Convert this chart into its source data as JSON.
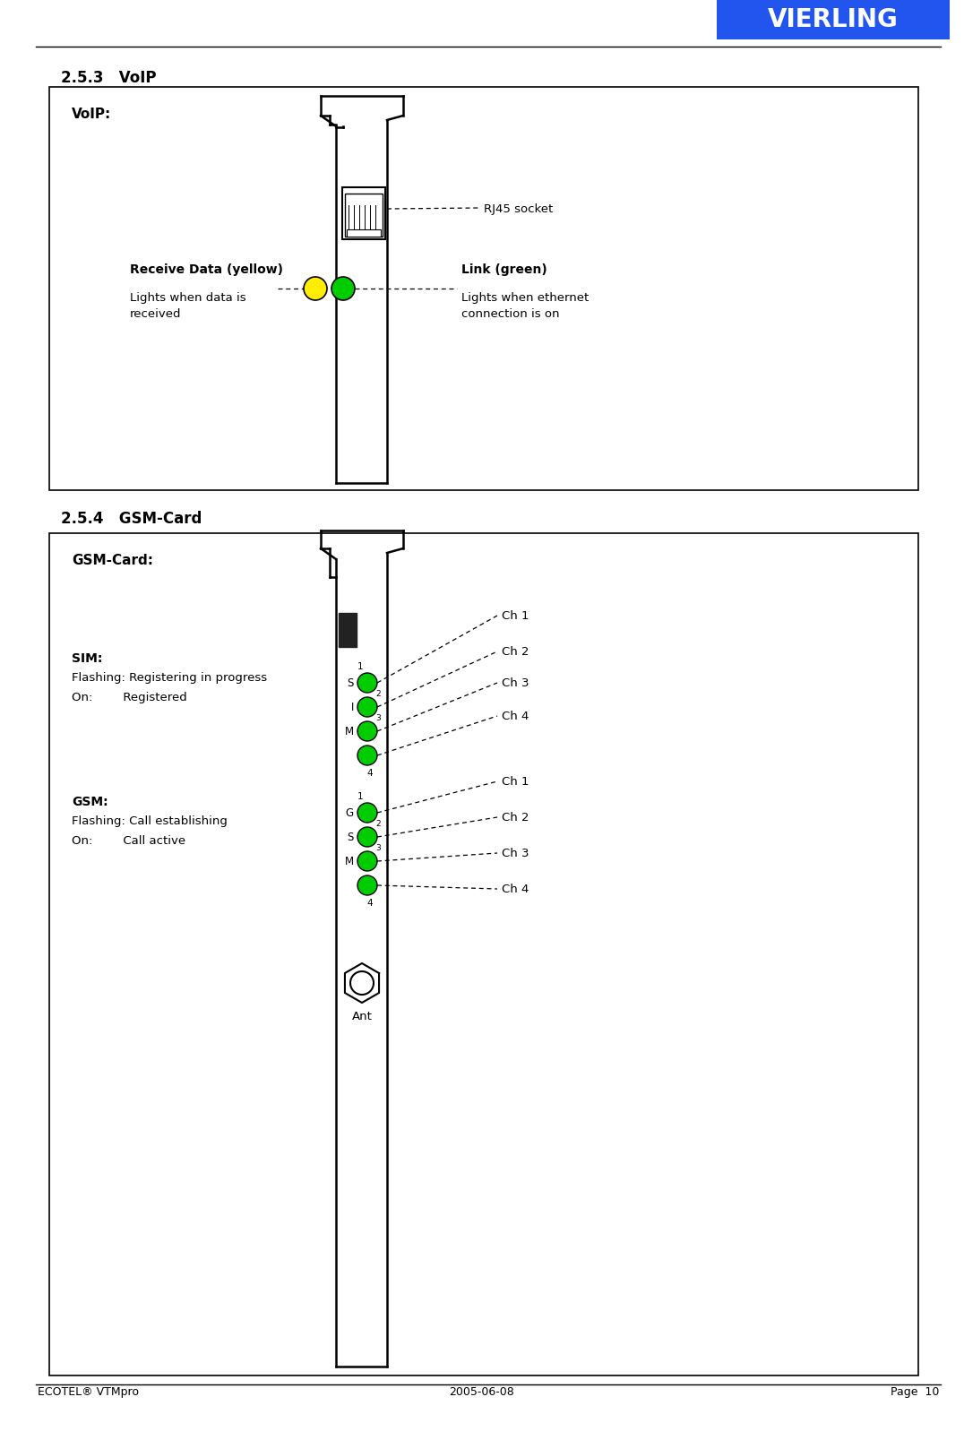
{
  "bg_color": "#ffffff",
  "header_bg": "#2255ee",
  "header_text": "VIERLING",
  "header_text_color": "#ffffff",
  "line_color": "#000000",
  "footer_left": "ECOTEL® VTMpro",
  "footer_center": "2005-06-08",
  "footer_right": "Page  10",
  "section1_title": "2.5.3   VoIP",
  "section2_title": "2.5.4   GSM-Card",
  "voip_box_label": "VoIP:",
  "gsm_box_label": "GSM-Card:",
  "receive_data_bold": "Receive Data (yellow)",
  "receive_data_sub": "Lights when data is\nreceived",
  "link_bold": "Link (green)",
  "link_sub": "Lights when ethernet\nconnection is on",
  "rj45_label": "RJ45 socket",
  "sim_bold": "SIM:",
  "sim_sub1": "Flashing: Registering in progress",
  "sim_sub2": "On:        Registered",
  "gsm_bold": "GSM:",
  "gsm_sub1": "Flashing: Call establishing",
  "gsm_sub2": "On:        Call active",
  "ant_label": "Ant",
  "ch_labels": [
    "Ch 1",
    "Ch 2",
    "Ch 3",
    "Ch 4"
  ],
  "led_green": "#00cc00",
  "led_yellow": "#ffee00",
  "card_color": "#000000",
  "box_color": "#000000"
}
